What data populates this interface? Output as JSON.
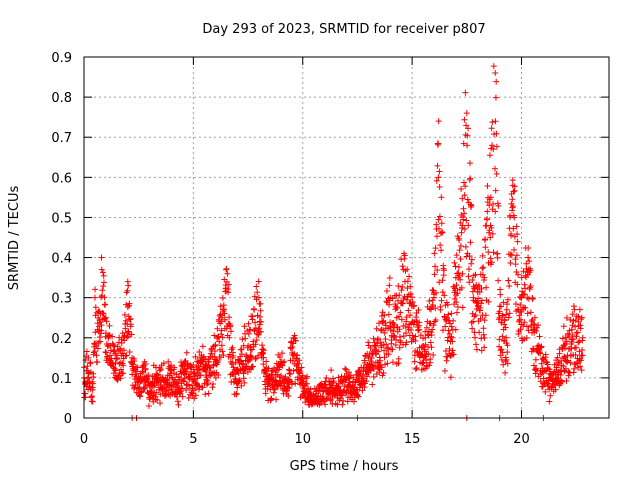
{
  "chart_data": {
    "type": "scatter",
    "title": "Day 293 of 2023, SRMTID for receiver p807",
    "xlabel": "GPS time / hours",
    "ylabel": "SRMTID / TECUs",
    "xlim": [
      0,
      24
    ],
    "ylim": [
      0,
      0.9
    ],
    "xticks": [
      0,
      5,
      10,
      15,
      20
    ],
    "xtick_labels": [
      "0",
      "5",
      "10",
      "15",
      "20"
    ],
    "yticks": [
      0,
      0.1,
      0.2,
      0.3,
      0.4,
      0.5,
      0.6,
      0.7,
      0.8,
      0.9
    ],
    "ytick_labels": [
      "0",
      "0.1",
      "0.2",
      "0.3",
      "0.4",
      "0.5",
      "0.6",
      "0.7",
      "0.8",
      "0.9"
    ],
    "grid": true,
    "marker": "+",
    "color": "#ff0000",
    "series": [
      {
        "name": "SRMTID",
        "x": [
          0.0,
          0.2,
          0.4,
          0.5,
          0.7,
          0.8,
          1.0,
          1.2,
          1.5,
          1.8,
          2.0,
          2.2,
          2.5,
          2.8,
          3.0,
          3.3,
          3.6,
          4.0,
          4.3,
          4.6,
          5.0,
          5.3,
          5.6,
          6.0,
          6.3,
          6.5,
          6.8,
          7.0,
          7.3,
          7.6,
          8.0,
          8.3,
          8.6,
          9.0,
          9.3,
          9.6,
          10.0,
          10.3,
          10.6,
          11.0,
          11.3,
          11.6,
          12.0,
          12.3,
          12.6,
          13.0,
          13.3,
          13.6,
          14.0,
          14.3,
          14.6,
          15.0,
          15.3,
          15.6,
          16.0,
          16.2,
          16.5,
          16.8,
          17.0,
          17.3,
          17.5,
          17.8,
          18.0,
          18.3,
          18.6,
          18.8,
          19.0,
          19.3,
          19.6,
          20.0,
          20.3,
          20.6,
          21.0,
          21.3,
          21.6,
          22.0,
          22.3,
          22.6,
          22.8
        ],
        "y": [
          0.1,
          0.15,
          0.07,
          0.3,
          0.22,
          0.4,
          0.25,
          0.18,
          0.15,
          0.2,
          0.34,
          0.15,
          0.1,
          0.12,
          0.08,
          0.11,
          0.1,
          0.12,
          0.09,
          0.14,
          0.11,
          0.15,
          0.13,
          0.18,
          0.25,
          0.37,
          0.15,
          0.12,
          0.18,
          0.22,
          0.3,
          0.12,
          0.1,
          0.14,
          0.09,
          0.2,
          0.1,
          0.06,
          0.05,
          0.08,
          0.09,
          0.07,
          0.1,
          0.09,
          0.11,
          0.15,
          0.18,
          0.22,
          0.3,
          0.25,
          0.37,
          0.28,
          0.22,
          0.2,
          0.3,
          0.6,
          0.25,
          0.2,
          0.35,
          0.48,
          0.76,
          0.3,
          0.28,
          0.35,
          0.55,
          0.86,
          0.25,
          0.2,
          0.58,
          0.3,
          0.4,
          0.22,
          0.15,
          0.1,
          0.12,
          0.2,
          0.22,
          0.24,
          0.2
        ],
        "zero_x": [
          2.2,
          2.4,
          12.5,
          17.5,
          19.0,
          21.0
        ]
      }
    ]
  }
}
